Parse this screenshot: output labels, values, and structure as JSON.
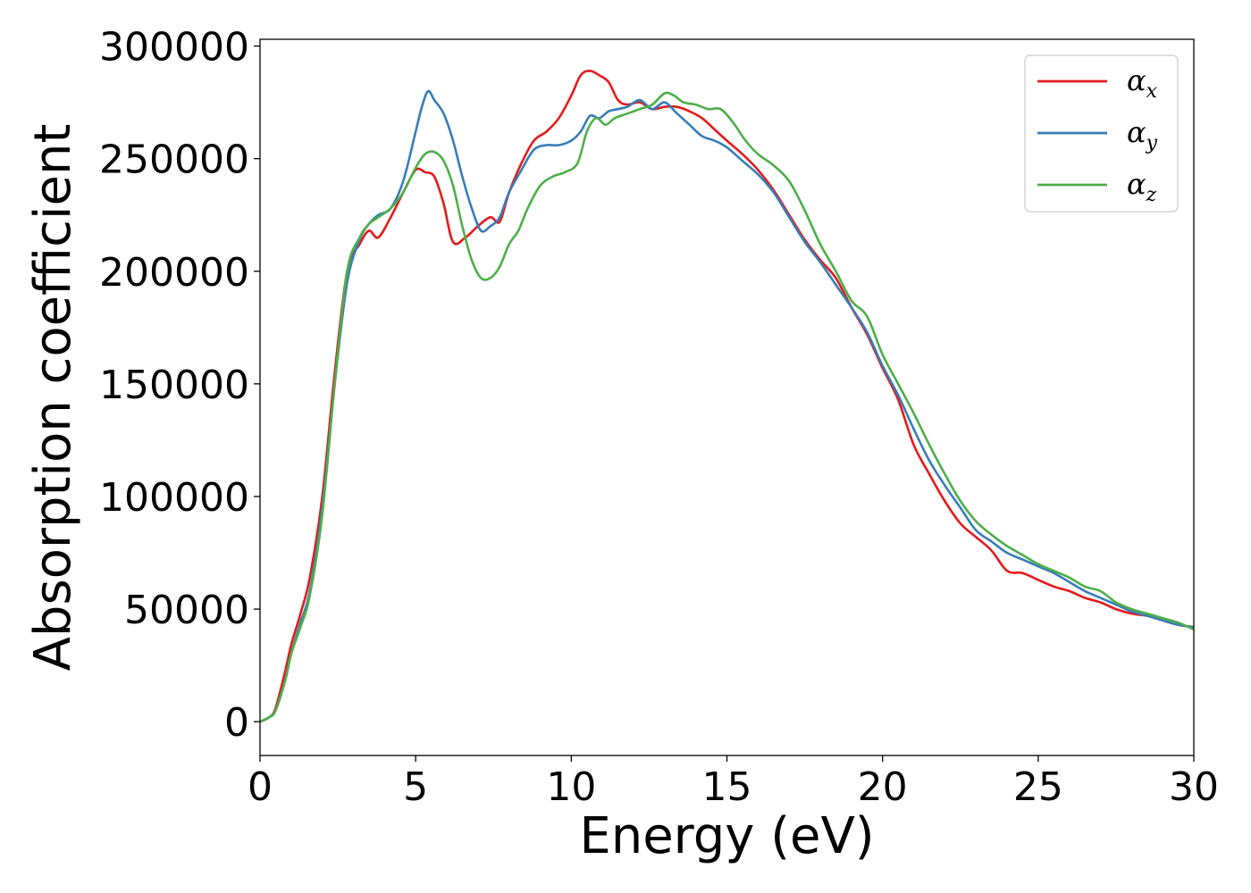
{
  "chart_data": {
    "type": "line",
    "title": "",
    "xlabel": "Energy (eV)",
    "ylabel": "Absorption coefficient",
    "xlim": [
      0,
      30
    ],
    "ylim": [
      -15000,
      303000
    ],
    "xticks": [
      "0",
      "5",
      "10",
      "15",
      "20",
      "25",
      "30"
    ],
    "yticks": [
      "0",
      "50000",
      "100000",
      "150000",
      "200000",
      "250000",
      "300000"
    ],
    "grid": false,
    "legend_position": "top-right",
    "series": [
      {
        "name": "α",
        "subscript": "x",
        "color": "#e41a1c",
        "x": [
          0,
          0.3,
          0.5,
          0.8,
          1.0,
          1.3,
          1.6,
          2.0,
          2.4,
          2.8,
          3.2,
          3.5,
          3.8,
          4.2,
          4.6,
          5.0,
          5.3,
          5.6,
          5.9,
          6.2,
          6.6,
          7.0,
          7.4,
          7.7,
          8.0,
          8.4,
          8.8,
          9.2,
          9.6,
          10.0,
          10.3,
          10.6,
          10.9,
          11.2,
          11.5,
          11.8,
          12.2,
          12.6,
          13.0,
          13.4,
          13.8,
          14.2,
          14.6,
          15.0,
          15.5,
          16.0,
          16.5,
          17.0,
          17.5,
          18.0,
          18.5,
          19.0,
          19.5,
          20.0,
          20.5,
          21.0,
          21.5,
          22.0,
          22.5,
          23.0,
          23.5,
          24.0,
          24.5,
          25.0,
          25.5,
          26.0,
          26.5,
          27.0,
          27.5,
          28.0,
          28.5,
          29.0,
          29.5,
          30.0
        ],
        "values": [
          0,
          2000,
          6000,
          22000,
          34000,
          48000,
          64000,
          100000,
          155000,
          200000,
          212000,
          218000,
          215000,
          224000,
          235000,
          245000,
          244000,
          242000,
          230000,
          213000,
          215000,
          220000,
          224000,
          222000,
          235000,
          248000,
          258000,
          262000,
          268000,
          278000,
          287000,
          289000,
          287000,
          284000,
          276000,
          274000,
          275000,
          272000,
          273000,
          273000,
          271000,
          268000,
          263000,
          258000,
          252000,
          245000,
          236000,
          225000,
          214000,
          205000,
          197000,
          184000,
          172000,
          157000,
          143000,
          123000,
          110000,
          98000,
          88000,
          82000,
          76000,
          67000,
          66000,
          63000,
          60000,
          58000,
          55000,
          53000,
          50000,
          48000,
          47000,
          45000,
          43000,
          42000
        ]
      },
      {
        "name": "α",
        "subscript": "y",
        "color": "#377eb8",
        "x": [
          0,
          0.3,
          0.5,
          0.8,
          1.0,
          1.3,
          1.6,
          2.0,
          2.4,
          2.8,
          3.2,
          3.5,
          3.8,
          4.2,
          4.6,
          5.0,
          5.2,
          5.4,
          5.6,
          5.9,
          6.2,
          6.5,
          6.8,
          7.1,
          7.4,
          7.7,
          8.0,
          8.4,
          8.8,
          9.2,
          9.6,
          10.0,
          10.3,
          10.6,
          10.9,
          11.2,
          11.5,
          11.8,
          12.2,
          12.6,
          13.0,
          13.4,
          13.8,
          14.2,
          14.6,
          15.0,
          15.5,
          16.0,
          16.5,
          17.0,
          17.5,
          18.0,
          18.5,
          19.0,
          19.5,
          20.0,
          20.5,
          21.0,
          21.5,
          22.0,
          22.5,
          23.0,
          23.5,
          24.0,
          24.5,
          25.0,
          25.5,
          26.0,
          26.5,
          27.0,
          27.5,
          28.0,
          28.5,
          29.0,
          29.5,
          30.0
        ],
        "values": [
          0,
          2000,
          5000,
          18000,
          30000,
          44000,
          58000,
          95000,
          150000,
          195000,
          214000,
          221000,
          225000,
          228000,
          240000,
          262000,
          273000,
          280000,
          276000,
          270000,
          258000,
          242000,
          228000,
          218000,
          220000,
          224000,
          235000,
          245000,
          254000,
          256000,
          256000,
          258000,
          262000,
          269000,
          268000,
          271000,
          272000,
          273000,
          276000,
          272000,
          275000,
          270000,
          265000,
          260000,
          258000,
          255000,
          249000,
          243000,
          235000,
          224000,
          213000,
          204000,
          194000,
          184000,
          173000,
          158000,
          145000,
          130000,
          116000,
          105000,
          95000,
          85000,
          80000,
          75000,
          72000,
          69000,
          66000,
          62000,
          58000,
          55000,
          52000,
          49000,
          47000,
          45000,
          43000,
          42000
        ]
      },
      {
        "name": "α",
        "subscript": "z",
        "color": "#4daf4a",
        "x": [
          0,
          0.3,
          0.5,
          0.8,
          1.0,
          1.3,
          1.6,
          2.0,
          2.4,
          2.8,
          3.2,
          3.5,
          3.8,
          4.2,
          4.6,
          5.0,
          5.3,
          5.6,
          5.9,
          6.2,
          6.5,
          6.8,
          7.1,
          7.4,
          7.7,
          8.0,
          8.3,
          8.6,
          9.0,
          9.4,
          9.8,
          10.2,
          10.5,
          10.8,
          11.1,
          11.4,
          11.8,
          12.2,
          12.6,
          13.0,
          13.3,
          13.6,
          14.0,
          14.4,
          14.8,
          15.2,
          15.6,
          16.0,
          16.5,
          17.0,
          17.5,
          18.0,
          18.5,
          19.0,
          19.5,
          20.0,
          20.5,
          21.0,
          21.5,
          22.0,
          22.5,
          23.0,
          23.5,
          24.0,
          24.5,
          25.0,
          25.5,
          26.0,
          26.5,
          27.0,
          27.5,
          28.0,
          28.5,
          29.0,
          29.5,
          30.0
        ],
        "values": [
          0,
          2000,
          5000,
          18000,
          30000,
          42000,
          56000,
          92000,
          150000,
          200000,
          215000,
          221000,
          224000,
          228000,
          235000,
          246000,
          252000,
          253000,
          249000,
          238000,
          220000,
          205000,
          197000,
          197000,
          202000,
          212000,
          218000,
          228000,
          238000,
          242000,
          244000,
          248000,
          262000,
          268000,
          265000,
          268000,
          270000,
          272000,
          274000,
          279000,
          278000,
          275000,
          274000,
          272000,
          272000,
          266000,
          258000,
          252000,
          247000,
          240000,
          227000,
          212000,
          200000,
          187000,
          180000,
          163000,
          150000,
          137000,
          123000,
          110000,
          98000,
          89000,
          83000,
          78000,
          74000,
          70000,
          67000,
          64000,
          60000,
          58000,
          53000,
          50000,
          48000,
          46000,
          44000,
          41000
        ]
      }
    ]
  }
}
